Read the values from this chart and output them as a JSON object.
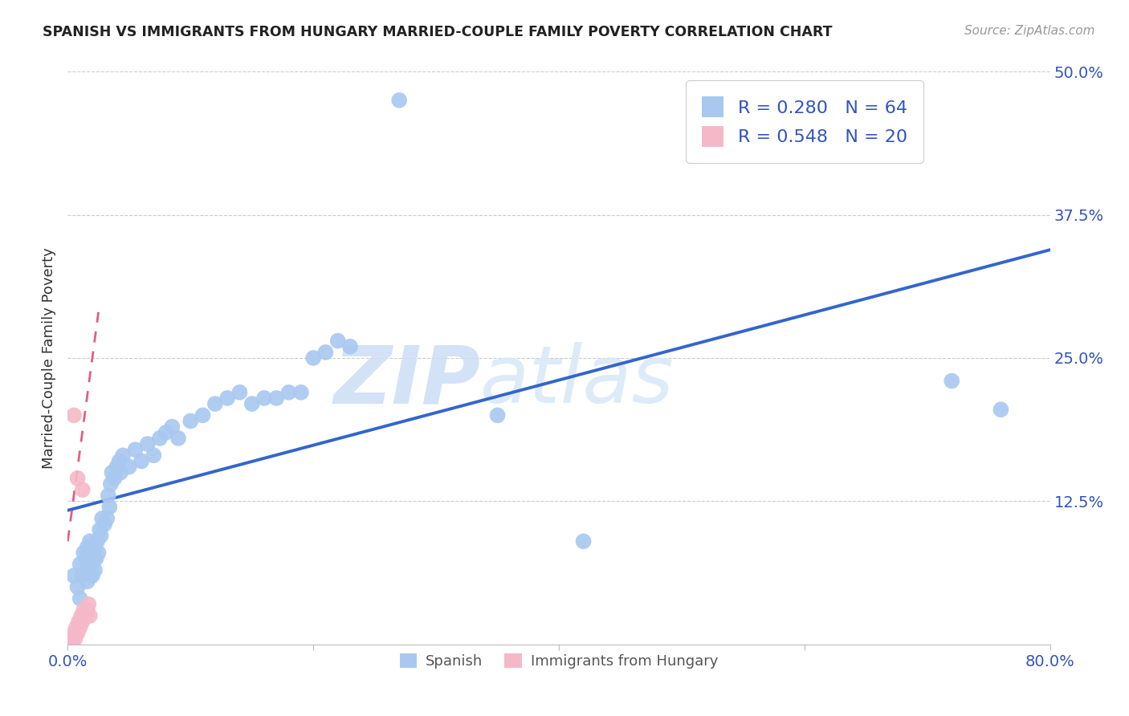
{
  "title": "SPANISH VS IMMIGRANTS FROM HUNGARY MARRIED-COUPLE FAMILY POVERTY CORRELATION CHART",
  "source": "Source: ZipAtlas.com",
  "ylabel": "Married-Couple Family Poverty",
  "xlim": [
    0.0,
    0.8
  ],
  "ylim": [
    0.0,
    0.5
  ],
  "xticks": [
    0.0,
    0.2,
    0.4,
    0.6,
    0.8
  ],
  "xticklabels": [
    "0.0%",
    "",
    "",
    "",
    "80.0%"
  ],
  "yticks": [
    0.0,
    0.125,
    0.25,
    0.375,
    0.5
  ],
  "yticklabels": [
    "",
    "12.5%",
    "25.0%",
    "37.5%",
    "50.0%"
  ],
  "spanish_R": 0.28,
  "spanish_N": 64,
  "hungary_R": 0.548,
  "hungary_N": 20,
  "spanish_color": "#a8c8f0",
  "hungary_color": "#f5b8c8",
  "regression_spanish_color": "#3366cc",
  "regression_hungary_color": "#e06080",
  "spanish_x": [
    0.005,
    0.008,
    0.01,
    0.01,
    0.012,
    0.013,
    0.015,
    0.015,
    0.016,
    0.016,
    0.017,
    0.018,
    0.018,
    0.019,
    0.02,
    0.02,
    0.021,
    0.022,
    0.022,
    0.023,
    0.024,
    0.025,
    0.026,
    0.027,
    0.028,
    0.03,
    0.032,
    0.033,
    0.034,
    0.035,
    0.036,
    0.038,
    0.04,
    0.042,
    0.043,
    0.045,
    0.05,
    0.055,
    0.06,
    0.065,
    0.07,
    0.075,
    0.08,
    0.085,
    0.09,
    0.1,
    0.11,
    0.12,
    0.13,
    0.14,
    0.15,
    0.16,
    0.17,
    0.18,
    0.19,
    0.2,
    0.21,
    0.22,
    0.23,
    0.27,
    0.35,
    0.42,
    0.72,
    0.76
  ],
  "spanish_y": [
    0.06,
    0.05,
    0.07,
    0.04,
    0.06,
    0.08,
    0.065,
    0.075,
    0.055,
    0.085,
    0.07,
    0.09,
    0.06,
    0.07,
    0.08,
    0.06,
    0.075,
    0.085,
    0.065,
    0.075,
    0.09,
    0.08,
    0.1,
    0.095,
    0.11,
    0.105,
    0.11,
    0.13,
    0.12,
    0.14,
    0.15,
    0.145,
    0.155,
    0.16,
    0.15,
    0.165,
    0.155,
    0.17,
    0.16,
    0.175,
    0.165,
    0.18,
    0.185,
    0.19,
    0.18,
    0.195,
    0.2,
    0.21,
    0.215,
    0.22,
    0.21,
    0.215,
    0.215,
    0.22,
    0.22,
    0.25,
    0.255,
    0.265,
    0.26,
    0.475,
    0.2,
    0.09,
    0.23,
    0.205
  ],
  "hungary_x": [
    0.002,
    0.003,
    0.004,
    0.005,
    0.006,
    0.007,
    0.008,
    0.009,
    0.01,
    0.011,
    0.012,
    0.013,
    0.014,
    0.015,
    0.016,
    0.017,
    0.018,
    0.005,
    0.008,
    0.012
  ],
  "hungary_y": [
    0.0,
    0.005,
    0.0,
    0.01,
    0.005,
    0.015,
    0.01,
    0.02,
    0.015,
    0.025,
    0.02,
    0.03,
    0.025,
    0.025,
    0.03,
    0.035,
    0.025,
    0.2,
    0.145,
    0.135
  ],
  "watermark_zip": "ZIP",
  "watermark_atlas": "atlas",
  "background_color": "#ffffff"
}
